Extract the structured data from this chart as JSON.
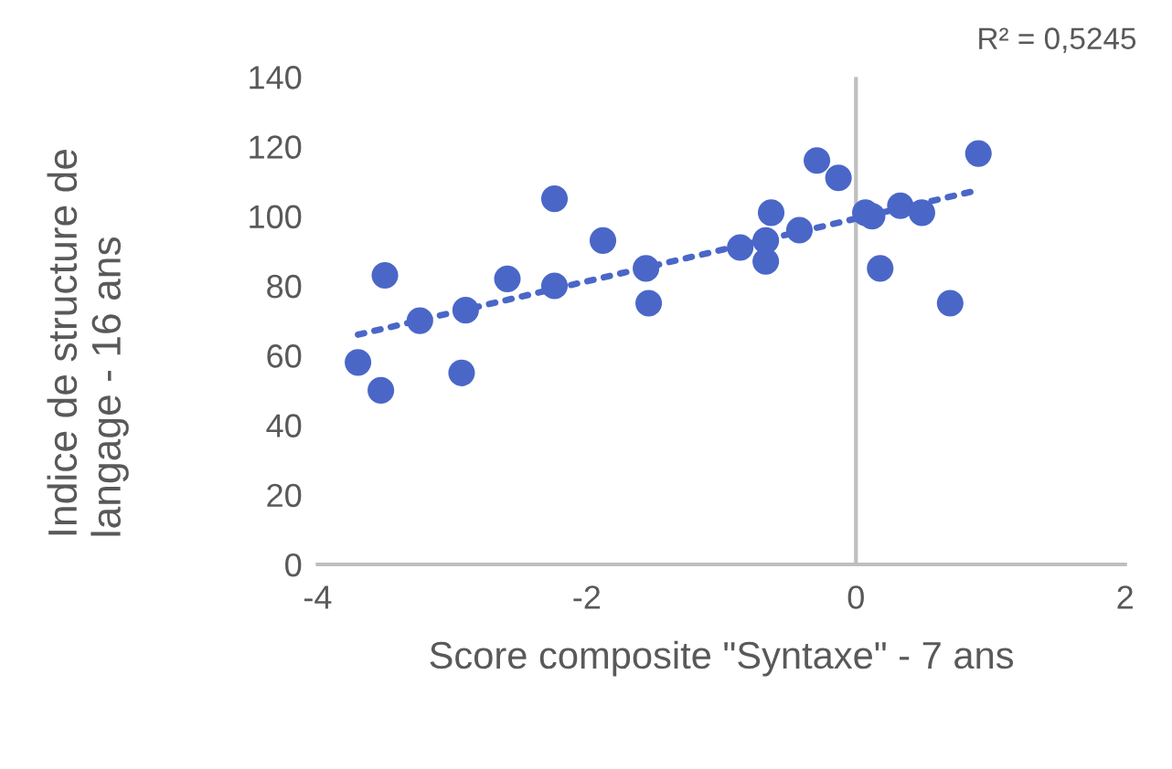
{
  "chart_data": {
    "type": "scatter",
    "xlabel": "Score composite \"Syntaxe\" - 7 ans",
    "ylabel": "Indice de structure de langage - 16 ans",
    "annotations": [
      "R² = 0,5245"
    ],
    "xlim": [
      -4,
      2
    ],
    "xticks": [
      -4,
      -2,
      0,
      2
    ],
    "ylim": [
      0,
      140
    ],
    "yticks": [
      0,
      20,
      40,
      60,
      80,
      100,
      120,
      140
    ],
    "grid": false,
    "ref_lines": [
      {
        "axis": "x",
        "value": 0,
        "color": "#bfbfbf",
        "line_style": "solid"
      }
    ],
    "marker": "circle",
    "series": [
      {
        "color": "#4a67c8",
        "x": [
          -3.7,
          -3.53,
          -3.5,
          -3.24,
          -2.93,
          -2.9,
          -2.59,
          -2.24,
          -2.24,
          -1.88,
          -1.56,
          -1.54,
          -0.86,
          -0.67,
          -0.67,
          -0.63,
          -0.42,
          -0.29,
          -0.13,
          0.07,
          0.12,
          0.18,
          0.33,
          0.49,
          0.7,
          0.91
        ],
        "values": [
          58,
          50,
          83,
          70,
          55,
          73,
          82,
          105,
          80,
          93,
          85,
          75,
          91,
          93,
          87,
          101,
          96,
          116,
          111,
          101,
          100,
          85,
          103,
          101,
          75,
          118
        ]
      },
      {
        "type": "line",
        "color": "#4a67c8",
        "line_style": "dotted",
        "marker": "none",
        "x": [
          -3.7,
          0.91
        ],
        "values": [
          66,
          107.5
        ]
      }
    ]
  }
}
